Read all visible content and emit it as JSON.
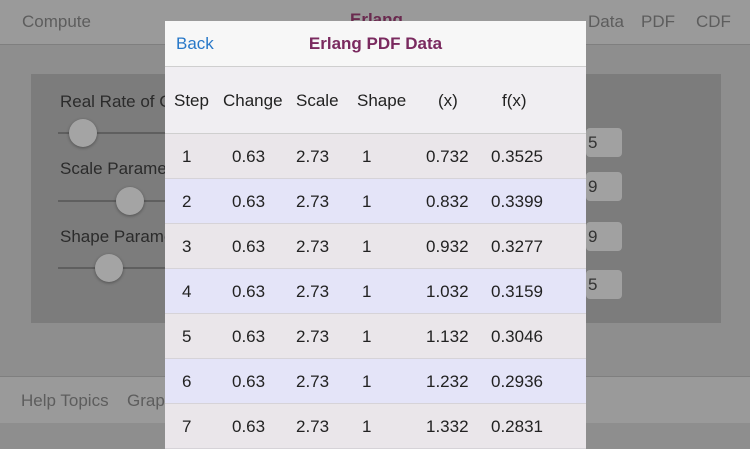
{
  "background": {
    "nav": {
      "left_item": "Compute",
      "title": "Erlang",
      "right_items": [
        "Data",
        "PDF",
        "CDF"
      ]
    },
    "parameters": [
      {
        "label": "Real Rate of C",
        "slider_fraction": 0.05,
        "field_value": "5"
      },
      {
        "label": "Scale Parame",
        "slider_fraction": 0.3,
        "field_value": "9"
      },
      {
        "label": "Shape Parame",
        "slider_fraction": 0.2,
        "field_value": "9"
      }
    ],
    "extra_field_value": "5",
    "tabbar": [
      "Help Topics",
      "Grap"
    ]
  },
  "modal": {
    "back_label": "Back",
    "title": "Erlang PDF Data",
    "columns": [
      "Step",
      "Change",
      "Scale",
      "Shape",
      "(x)",
      "f(x)"
    ],
    "rows": [
      [
        "1",
        "0.63",
        "2.73",
        "1",
        "0.732",
        "0.3525"
      ],
      [
        "2",
        "0.63",
        "2.73",
        "1",
        "0.832",
        "0.3399"
      ],
      [
        "3",
        "0.63",
        "2.73",
        "1",
        "0.932",
        "0.3277"
      ],
      [
        "4",
        "0.63",
        "2.73",
        "1",
        "1.032",
        "0.3159"
      ],
      [
        "5",
        "0.63",
        "2.73",
        "1",
        "1.132",
        "0.3046"
      ],
      [
        "6",
        "0.63",
        "2.73",
        "1",
        "1.232",
        "0.2936"
      ],
      [
        "7",
        "0.63",
        "2.73",
        "1",
        "1.332",
        "0.2831"
      ]
    ]
  },
  "colors": {
    "accent_blue": "#2878c8",
    "title_purple": "#7a2a5f",
    "row_alt": "#e4e4f8"
  }
}
